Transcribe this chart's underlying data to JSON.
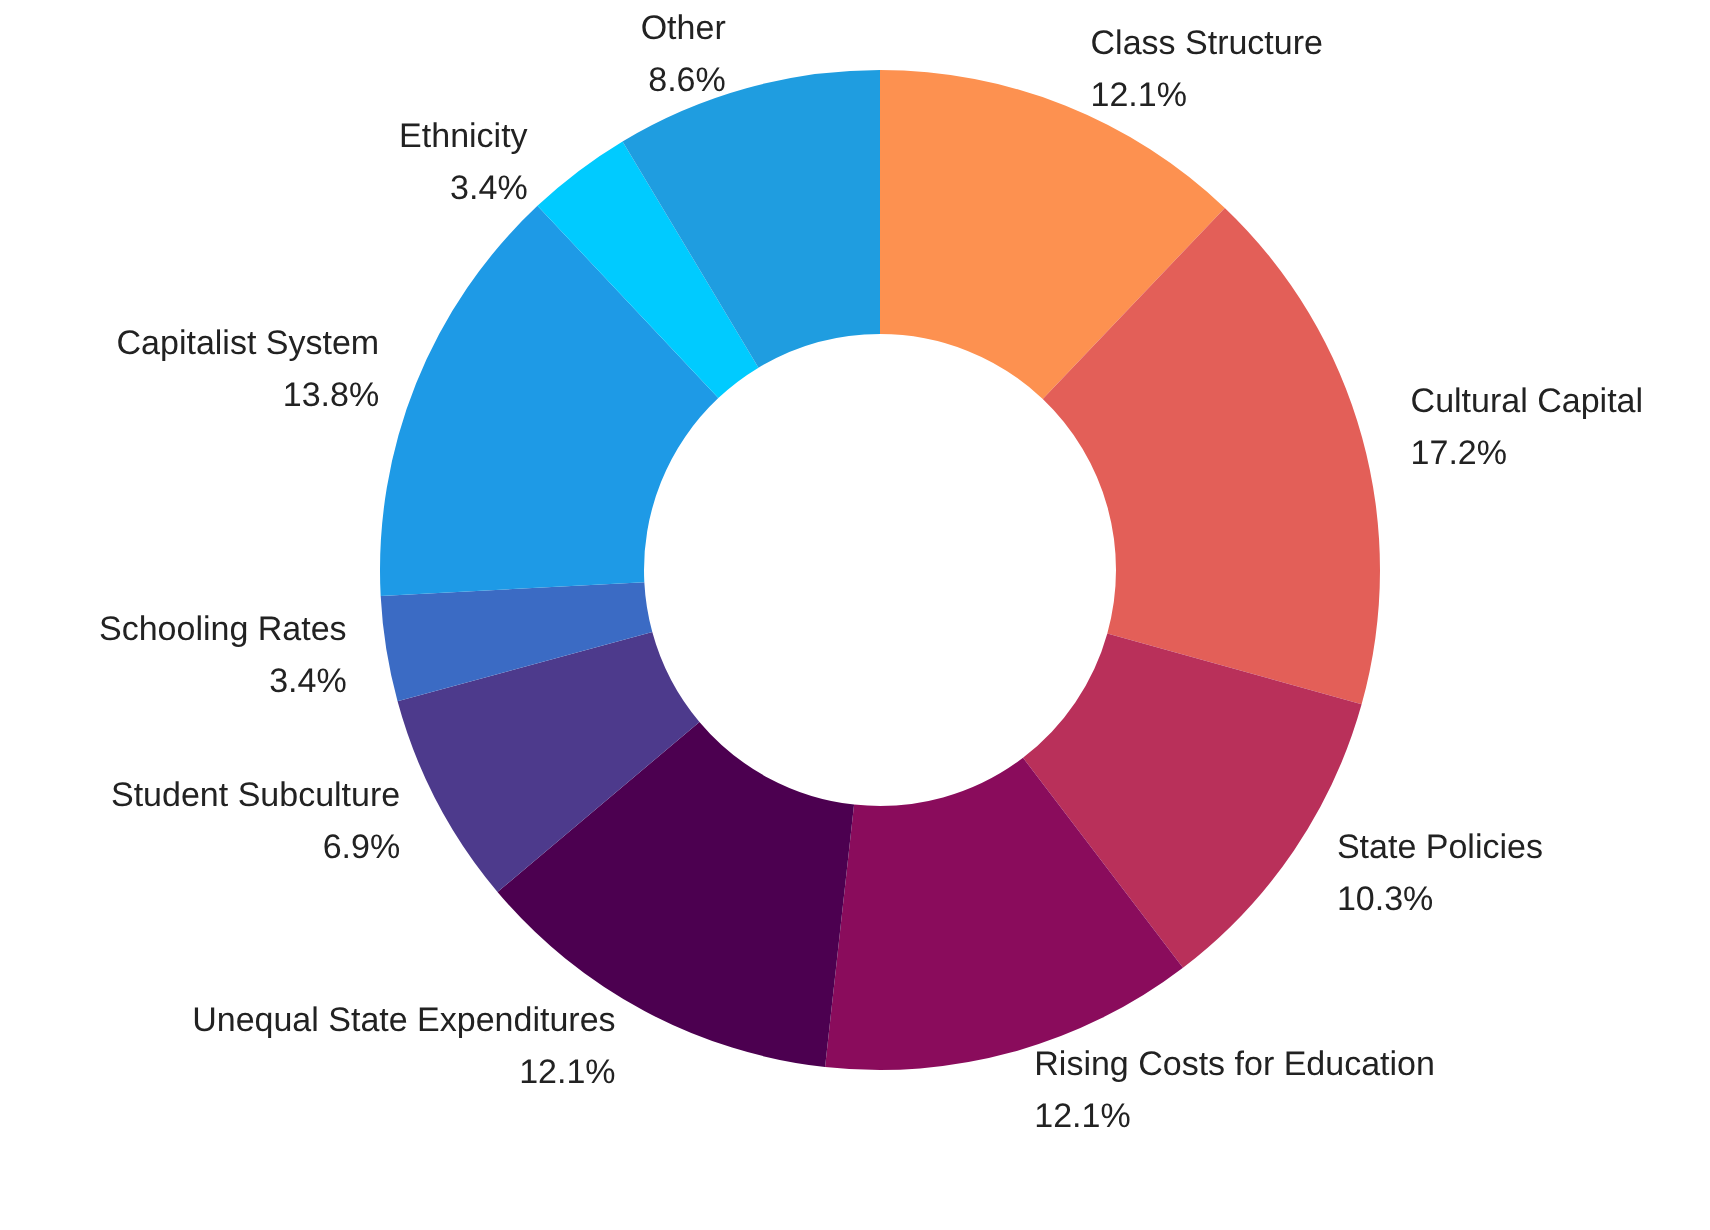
{
  "chart_data": {
    "type": "donut",
    "categories": [
      "Class Structure",
      "Cultural Capital",
      "State Policies",
      "Rising Costs for Education",
      "Unequal State Expenditures",
      "Student Subculture",
      "Schooling Rates",
      "Capitalist System",
      "Ethnicity",
      "Other"
    ],
    "values": [
      12.1,
      17.2,
      10.3,
      12.1,
      12.1,
      6.9,
      3.4,
      13.8,
      3.4,
      8.6
    ],
    "value_labels": [
      "12.1%",
      "17.2%",
      "10.3%",
      "12.1%",
      "12.1%",
      "6.9%",
      "3.4%",
      "13.8%",
      "3.4%",
      "8.6%"
    ],
    "colors": [
      "#fd9150",
      "#e35f58",
      "#b9305a",
      "#8a0c5c",
      "#4c0050",
      "#4d3a8c",
      "#3b6bc4",
      "#1e9ae6",
      "#00cbff",
      "#1f9de0"
    ],
    "legend": false
  }
}
